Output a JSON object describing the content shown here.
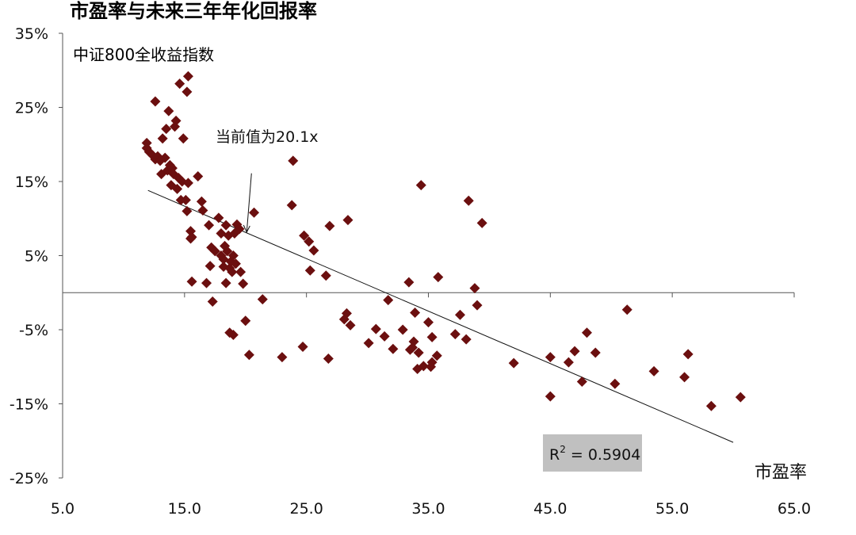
{
  "chart_data": {
    "type": "scatter",
    "title": "市盈率与未来三年年化回报率",
    "subtitle": "中证800全收益指数",
    "xlabel": "市盈率",
    "ylabel": "",
    "xlim": [
      5,
      65
    ],
    "ylim": [
      -25,
      35
    ],
    "x_ticks": [
      5,
      15,
      25,
      35,
      45,
      55,
      65
    ],
    "x_tick_labels": [
      "5.0",
      "15.0",
      "25.0",
      "35.0",
      "45.0",
      "55.0",
      "65.0"
    ],
    "y_ticks": [
      35,
      25,
      15,
      5,
      -5,
      -15,
      -25
    ],
    "y_tick_labels": [
      "35%",
      "25%",
      "15%",
      "5%",
      "-5%",
      "-15%",
      "-25%"
    ],
    "annotation": {
      "text": "当前值为20.1x",
      "x": 20.1,
      "y": 14.5
    },
    "r_squared_label": {
      "prefix": "R",
      "sup": "2",
      "suffix": " = 0.5904"
    },
    "trendline": {
      "x": [
        12.0,
        60.0
      ],
      "y": [
        13.8,
        -20.2
      ]
    },
    "marker_color": "#6b0f0f",
    "points": [
      [
        11.9,
        20.2
      ],
      [
        11.9,
        19.5
      ],
      [
        12.1,
        19.0
      ],
      [
        12.4,
        18.5
      ],
      [
        12.6,
        18.0
      ],
      [
        12.6,
        25.8
      ],
      [
        12.8,
        18.4
      ],
      [
        13.0,
        17.8
      ],
      [
        13.1,
        16.0
      ],
      [
        13.2,
        20.8
      ],
      [
        13.4,
        18.2
      ],
      [
        13.5,
        22.1
      ],
      [
        13.6,
        16.5
      ],
      [
        13.7,
        24.5
      ],
      [
        13.8,
        17.2
      ],
      [
        13.9,
        14.5
      ],
      [
        14.0,
        16.8
      ],
      [
        14.1,
        16.0
      ],
      [
        14.2,
        22.4
      ],
      [
        14.3,
        23.2
      ],
      [
        14.4,
        14.0
      ],
      [
        14.5,
        15.5
      ],
      [
        14.6,
        28.2
      ],
      [
        14.7,
        12.5
      ],
      [
        14.8,
        15.0
      ],
      [
        14.9,
        20.8
      ],
      [
        15.1,
        12.5
      ],
      [
        15.2,
        11.0
      ],
      [
        15.2,
        27.1
      ],
      [
        15.3,
        29.2
      ],
      [
        15.3,
        14.8
      ],
      [
        15.5,
        8.3
      ],
      [
        15.5,
        7.3
      ],
      [
        15.6,
        7.5
      ],
      [
        15.6,
        1.5
      ],
      [
        16.1,
        15.7
      ],
      [
        16.4,
        12.3
      ],
      [
        16.5,
        11.1
      ],
      [
        16.8,
        1.3
      ],
      [
        17.0,
        9.1
      ],
      [
        17.1,
        3.6
      ],
      [
        17.2,
        6.1
      ],
      [
        17.3,
        -1.2
      ],
      [
        17.5,
        5.6
      ],
      [
        17.8,
        10.1
      ],
      [
        18.0,
        8.0
      ],
      [
        18.0,
        5.0
      ],
      [
        18.2,
        3.5
      ],
      [
        18.2,
        4.5
      ],
      [
        18.3,
        6.3
      ],
      [
        18.4,
        9.1
      ],
      [
        18.4,
        1.3
      ],
      [
        18.5,
        5.6
      ],
      [
        18.6,
        7.7
      ],
      [
        18.7,
        3.3
      ],
      [
        18.7,
        -5.4
      ],
      [
        18.8,
        4.2
      ],
      [
        18.9,
        2.8
      ],
      [
        19.0,
        5.0
      ],
      [
        19.0,
        -5.7
      ],
      [
        19.1,
        8.0
      ],
      [
        19.2,
        3.9
      ],
      [
        19.3,
        9.2
      ],
      [
        19.5,
        8.6
      ],
      [
        19.6,
        2.8
      ],
      [
        19.8,
        1.2
      ],
      [
        20.0,
        -3.8
      ],
      [
        20.3,
        -8.4
      ],
      [
        20.7,
        10.8
      ],
      [
        21.4,
        -0.9
      ],
      [
        23.0,
        -8.7
      ],
      [
        23.8,
        11.8
      ],
      [
        23.9,
        17.8
      ],
      [
        24.7,
        -7.3
      ],
      [
        24.8,
        7.7
      ],
      [
        25.2,
        6.9
      ],
      [
        25.3,
        3.0
      ],
      [
        25.6,
        5.7
      ],
      [
        26.6,
        2.3
      ],
      [
        26.8,
        -8.9
      ],
      [
        26.9,
        9.0
      ],
      [
        28.1,
        -3.6
      ],
      [
        28.3,
        -2.8
      ],
      [
        28.4,
        9.8
      ],
      [
        28.6,
        -4.4
      ],
      [
        30.1,
        -6.8
      ],
      [
        30.7,
        -4.9
      ],
      [
        31.4,
        -5.9
      ],
      [
        31.7,
        -1.0
      ],
      [
        32.1,
        -7.6
      ],
      [
        32.9,
        -5.0
      ],
      [
        33.4,
        1.4
      ],
      [
        33.5,
        -7.7
      ],
      [
        33.7,
        -7.4
      ],
      [
        33.8,
        -6.6
      ],
      [
        33.9,
        -2.7
      ],
      [
        34.1,
        -10.3
      ],
      [
        34.2,
        -8.1
      ],
      [
        34.4,
        14.5
      ],
      [
        34.6,
        -9.9
      ],
      [
        35.0,
        -4.0
      ],
      [
        35.2,
        -10.0
      ],
      [
        35.3,
        -9.4
      ],
      [
        35.3,
        -6.0
      ],
      [
        35.7,
        -8.5
      ],
      [
        35.8,
        2.1
      ],
      [
        37.2,
        -5.6
      ],
      [
        37.6,
        -3.0
      ],
      [
        38.1,
        -6.3
      ],
      [
        38.3,
        12.4
      ],
      [
        38.8,
        0.6
      ],
      [
        39.0,
        -1.7
      ],
      [
        39.4,
        9.4
      ],
      [
        42.0,
        -9.5
      ],
      [
        45.0,
        -8.7
      ],
      [
        45.0,
        -14.0
      ],
      [
        46.5,
        -9.4
      ],
      [
        47.0,
        -7.9
      ],
      [
        47.6,
        -12.0
      ],
      [
        48.0,
        -5.4
      ],
      [
        48.7,
        -8.1
      ],
      [
        50.3,
        -12.3
      ],
      [
        51.3,
        -2.3
      ],
      [
        53.5,
        -10.6
      ],
      [
        56.0,
        -11.4
      ],
      [
        56.3,
        -8.3
      ],
      [
        58.2,
        -15.3
      ],
      [
        60.6,
        -14.1
      ]
    ]
  }
}
